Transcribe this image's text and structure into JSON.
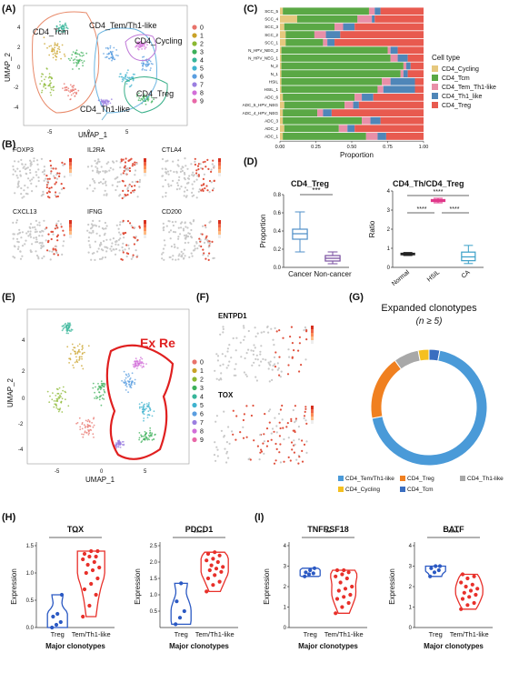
{
  "panels": {
    "A": {
      "letter": "(A)",
      "xlabel": "UMAP_1",
      "ylabel": "UMAP_2",
      "cluster_labels": [
        "CD4_Tcm",
        "CD4_Tem/Th1-like",
        "CD4_Cycling",
        "CD4_Treg",
        "CD4_Th1-like"
      ],
      "legend": [
        "0",
        "1",
        "2",
        "3",
        "4",
        "5",
        "6",
        "7",
        "8",
        "9"
      ],
      "ticks_x": [
        "-5",
        "0",
        "5"
      ],
      "ticks_y": [
        "-4",
        "-2",
        "0",
        "2",
        "4"
      ]
    },
    "B": {
      "letter": "(B)",
      "genes": [
        "FOXP3",
        "IL2RA",
        "CTLA4",
        "CXCL13",
        "IFNG",
        "CD200"
      ]
    },
    "C": {
      "letter": "(C)",
      "xlabel": "Proportion",
      "ticks_x": [
        "0.00",
        "0.25",
        "0.50",
        "0.75",
        "1.00"
      ],
      "legend_title": "Cell type",
      "legend": [
        "CD4_Cycling",
        "CD4_Tcm",
        "CD4_Tem_Th1-like",
        "CD4_Th1_like",
        "CD4_Treg"
      ]
    },
    "D": {
      "letter": "(D)",
      "left_title": "CD4_Treg",
      "left_ylabel": "Proportion",
      "left_ticks_y": [
        "0.0",
        "0.2",
        "0.4",
        "0.6",
        "0.8"
      ],
      "left_groups": [
        "Cancer",
        "Non-cancer"
      ],
      "left_sig": "***",
      "right_title": "CD4_Th/CD4_Treg",
      "right_ylabel": "Ratio",
      "right_ticks_y": [
        "0",
        "1",
        "2",
        "3",
        "4"
      ],
      "right_groups": [
        "Normal",
        "HSIL",
        "CA"
      ],
      "right_sig": [
        "****",
        "****",
        "****"
      ]
    },
    "E": {
      "letter": "(E)",
      "annotation": "Ex Re",
      "xlabel": "UMAP_1",
      "ylabel": "UMAP_2",
      "legend": [
        "0",
        "1",
        "2",
        "3",
        "4",
        "5",
        "6",
        "7",
        "8",
        "9"
      ],
      "ticks_x": [
        "-5",
        "0",
        "5"
      ],
      "ticks_y": [
        "-4",
        "-2",
        "0",
        "2",
        "4"
      ]
    },
    "F": {
      "letter": "(F)",
      "genes": [
        "ENTPD1",
        "TOX"
      ]
    },
    "G": {
      "letter": "(G)",
      "title": "Expanded clonotypes",
      "subtitle": "(n ≥ 5)",
      "legend": [
        "CD4_Tem/Th1-like",
        "CD4_Treg",
        "CD4_Th1-like",
        "CD4_Cycling",
        "CD4_Tcm"
      ]
    },
    "H": {
      "letter": "(H)",
      "plots": [
        {
          "title": "TOX",
          "ticks_y": [
            "0.0",
            "0.5",
            "1.0",
            "1.5"
          ],
          "sig": "**"
        },
        {
          "title": "PDCD1",
          "ticks_y": [
            "0.5",
            "1.0",
            "1.5",
            "2.0",
            "2.5"
          ],
          "sig": "****"
        }
      ],
      "groups": [
        "Treg",
        "Tem/Th1-like"
      ],
      "ylabel": "Expression",
      "xlabel": "Major clonotypes"
    },
    "I": {
      "letter": "(I)",
      "plots": [
        {
          "title": "TNFRSF18",
          "ticks_y": [
            "0",
            "1",
            "2",
            "3",
            "4"
          ],
          "sig": "**"
        },
        {
          "title": "BATF",
          "ticks_y": [
            "0",
            "1",
            "2",
            "3",
            "4"
          ],
          "sig": "****"
        }
      ],
      "groups": [
        "Treg",
        "Tem/Th1-like"
      ],
      "ylabel": "Expression",
      "xlabel": "Major clonotypes"
    }
  },
  "colors": {
    "cycling": "#e6c87e",
    "tcm": "#5aa845",
    "tem": "#e88fa8",
    "th1": "#4f86b8",
    "treg": "#e85a4f",
    "ring_tem": "#4a9ad8",
    "ring_treg": "#f08020",
    "ring_th1": "#a8a8a8",
    "ring_cycling": "#f5c020",
    "ring_tcm": "#3a6ec0",
    "treg_violin": "#2b59c3",
    "tem_violin": "#e8302a",
    "box_cancer": "#4f8fc8",
    "box_noncancer": "#7a4fa0",
    "box_normal": "#222222",
    "box_hsil": "#e0388a",
    "box_ca": "#3aa0c8",
    "umap_palette": [
      "#e8736b",
      "#c9a227",
      "#8bb832",
      "#3cb05a",
      "#37b59a",
      "#3fb3cf",
      "#5a9ee0",
      "#9b7fe0",
      "#d26fd8",
      "#e868a8"
    ]
  },
  "chart_data": [
    {
      "panel": "C",
      "type": "bar",
      "orientation": "horizontal",
      "stacked": true,
      "xlabel": "Proportion",
      "xlim": [
        0,
        1
      ],
      "legend_title": "Cell type",
      "categories": [
        "SCC_5",
        "SCC_4",
        "SCC_3",
        "SCC_2",
        "SCC_1",
        "N_HPV_NEG_2",
        "N_HPV_NEG_1",
        "N_2",
        "N_1",
        "HSIL",
        "HSIL_1",
        "ADC_6",
        "ADC_5_HPV_NEG",
        "ADC_4_HPV_NEG",
        "ADC_3",
        "ADC_2",
        "ADC_1"
      ],
      "series": [
        {
          "name": "CD4_Cycling",
          "values": [
            0.02,
            0.12,
            0.03,
            0.04,
            0.04,
            0.01,
            0.01,
            0.01,
            0.01,
            0.01,
            0.01,
            0.02,
            0.03,
            0.02,
            0.02,
            0.03,
            0.02
          ]
        },
        {
          "name": "CD4_Tcm",
          "values": [
            0.6,
            0.42,
            0.35,
            0.2,
            0.26,
            0.74,
            0.76,
            0.85,
            0.83,
            0.7,
            0.67,
            0.5,
            0.42,
            0.24,
            0.55,
            0.38,
            0.58
          ]
        },
        {
          "name": "CD4_Tem_Th1-like",
          "values": [
            0.04,
            0.1,
            0.06,
            0.08,
            0.03,
            0.02,
            0.05,
            0.02,
            0.02,
            0.06,
            0.04,
            0.05,
            0.06,
            0.04,
            0.06,
            0.06,
            0.08
          ]
        },
        {
          "name": "CD4_Th1_like",
          "values": [
            0.04,
            0.02,
            0.08,
            0.1,
            0.05,
            0.05,
            0.07,
            0.03,
            0.03,
            0.17,
            0.22,
            0.08,
            0.04,
            0.06,
            0.07,
            0.05,
            0.06
          ]
        },
        {
          "name": "CD4_Treg",
          "values": [
            0.3,
            0.34,
            0.48,
            0.58,
            0.62,
            0.18,
            0.11,
            0.09,
            0.11,
            0.06,
            0.06,
            0.35,
            0.45,
            0.64,
            0.3,
            0.48,
            0.26
          ]
        }
      ]
    },
    {
      "panel": "D-left",
      "type": "box",
      "title": "CD4_Treg",
      "ylabel": "Proportion",
      "ylim": [
        0,
        0.8
      ],
      "categories": [
        "Cancer",
        "Non-cancer"
      ],
      "boxes": [
        {
          "min": 0.17,
          "q1": 0.31,
          "median": 0.37,
          "q3": 0.42,
          "max": 0.61
        },
        {
          "min": 0.04,
          "q1": 0.07,
          "median": 0.1,
          "q3": 0.13,
          "max": 0.17
        }
      ],
      "significance": "***"
    },
    {
      "panel": "D-right",
      "type": "box",
      "title": "CD4_Th/CD4_Treg",
      "ylabel": "Ratio",
      "ylim": [
        0,
        4
      ],
      "categories": [
        "Normal",
        "HSIL",
        "CA"
      ],
      "boxes": [
        {
          "min": 0.62,
          "q1": 0.66,
          "median": 0.7,
          "q3": 0.74,
          "max": 0.78
        },
        {
          "min": 3.38,
          "q1": 3.45,
          "median": 3.5,
          "q3": 3.55,
          "max": 3.62
        },
        {
          "min": 0.2,
          "q1": 0.35,
          "median": 0.55,
          "q3": 0.8,
          "max": 1.15
        }
      ],
      "significance": [
        "****",
        "****",
        "****"
      ]
    },
    {
      "panel": "G",
      "type": "pie",
      "donut": true,
      "title": "Expanded clonotypes",
      "categories": [
        "CD4_Tem/Th1-like",
        "CD4_Treg",
        "CD4_Th1-like",
        "CD4_Cycling",
        "CD4_Tcm"
      ],
      "values": [
        0.69,
        0.18,
        0.07,
        0.03,
        0.03
      ]
    },
    {
      "panel": "H-TOX",
      "type": "violin",
      "title": "TOX",
      "ylabel": "Expression",
      "xlabel": "Major clonotypes",
      "ylim": [
        0,
        1.5
      ],
      "categories": [
        "Treg",
        "Tem/Th1-like"
      ],
      "points": [
        [
          0.0,
          0.05,
          0.1,
          0.2,
          0.25,
          0.6
        ],
        [
          0.2,
          0.4,
          0.6,
          0.7,
          0.8,
          0.9,
          1.0,
          1.05,
          1.1,
          1.15,
          1.2,
          1.25,
          1.3,
          1.3,
          1.35,
          1.4,
          1.4
        ]
      ],
      "significance": "**"
    },
    {
      "panel": "H-PDCD1",
      "type": "violin",
      "title": "PDCD1",
      "ylabel": "Expression",
      "xlabel": "Major clonotypes",
      "ylim": [
        0,
        2.5
      ],
      "categories": [
        "Treg",
        "Tem/Th1-like"
      ],
      "points": [
        [
          0.1,
          0.3,
          0.5,
          0.8,
          1.35
        ],
        [
          1.1,
          1.3,
          1.4,
          1.5,
          1.6,
          1.7,
          1.75,
          1.8,
          1.85,
          1.9,
          2.0,
          2.05,
          2.1,
          2.2,
          2.25,
          2.3
        ]
      ],
      "significance": "****"
    },
    {
      "panel": "I-TNFRSF18",
      "type": "violin",
      "title": "TNFRSF18",
      "ylabel": "Expression",
      "xlabel": "Major clonotypes",
      "ylim": [
        0,
        4
      ],
      "categories": [
        "Treg",
        "Tem/Th1-like"
      ],
      "points": [
        [
          2.5,
          2.6,
          2.65,
          2.7,
          2.8,
          2.9
        ],
        [
          0.7,
          1.0,
          1.2,
          1.4,
          1.5,
          1.6,
          1.8,
          1.9,
          2.0,
          2.2,
          2.4,
          2.5,
          2.6,
          2.7,
          2.8,
          2.8
        ]
      ],
      "significance": "**"
    },
    {
      "panel": "I-BATF",
      "type": "violin",
      "title": "BATF",
      "ylabel": "Expression",
      "xlabel": "Major clonotypes",
      "ylim": [
        0,
        4
      ],
      "categories": [
        "Treg",
        "Tem/Th1-like"
      ],
      "points": [
        [
          2.5,
          2.7,
          2.8,
          2.9,
          3.0,
          3.0
        ],
        [
          0.9,
          1.1,
          1.2,
          1.4,
          1.5,
          1.6,
          1.7,
          1.8,
          1.9,
          2.0,
          2.1,
          2.2,
          2.4,
          2.5,
          2.6
        ]
      ],
      "significance": "****"
    }
  ]
}
